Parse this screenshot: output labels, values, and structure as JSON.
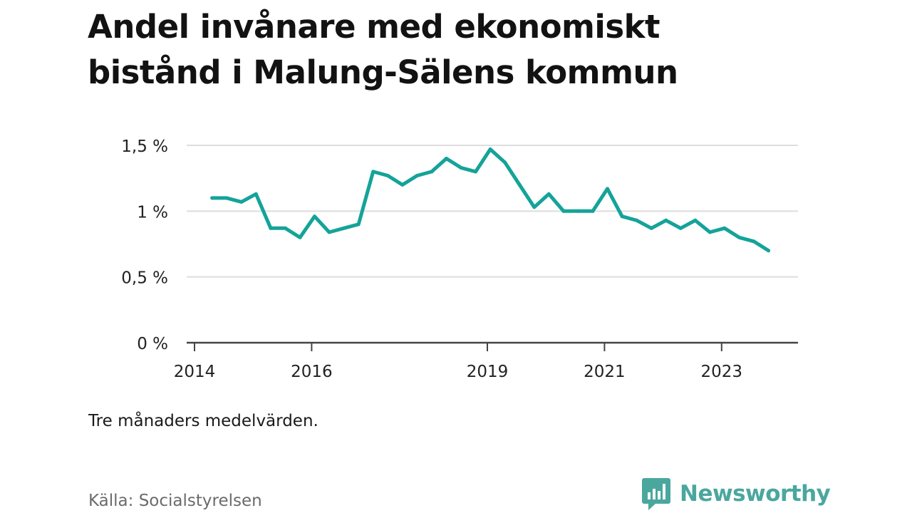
{
  "title_line1": "Andel invånare med ekonomiskt",
  "title_line2": "bistånd i Malung-Sälens kommun",
  "note": "Tre månaders medelvärden.",
  "source": "Källa: Socialstyrelsen",
  "brand": "Newsworthy",
  "colors": {
    "line": "#14a399",
    "grid": "#dddddd",
    "axis": "#444444",
    "brand": "#4aa79e"
  },
  "chart_data": {
    "type": "line",
    "y_ticks": [
      {
        "value": 0,
        "label": "0 %"
      },
      {
        "value": 0.5,
        "label": "0,5 %"
      },
      {
        "value": 1,
        "label": "1 %"
      },
      {
        "value": 1.5,
        "label": "1,5 %"
      }
    ],
    "x_ticks": [
      {
        "value": 2014,
        "label": "2014"
      },
      {
        "value": 2016,
        "label": "2016"
      },
      {
        "value": 2019,
        "label": "2019"
      },
      {
        "value": 2021,
        "label": "2021"
      },
      {
        "value": 2023,
        "label": "2023"
      }
    ],
    "xlim": [
      2014,
      2024.3
    ],
    "ylim": [
      0,
      1.5
    ],
    "grid": true,
    "series": [
      {
        "x": [
          2014.3,
          2014.55,
          2014.8,
          2015.05,
          2015.3,
          2015.55,
          2015.8,
          2016.05,
          2016.3,
          2016.55,
          2016.8,
          2017.05,
          2017.3,
          2017.55,
          2017.8,
          2018.05,
          2018.3,
          2018.55,
          2018.8,
          2019.05,
          2019.3,
          2019.55,
          2019.8,
          2020.05,
          2020.3,
          2020.55,
          2020.8,
          2021.05,
          2021.3,
          2021.55,
          2021.8,
          2022.05,
          2022.3,
          2022.55,
          2022.8,
          2023.05,
          2023.3,
          2023.55,
          2023.8
        ],
        "values": [
          1.1,
          1.1,
          1.07,
          1.13,
          0.87,
          0.87,
          0.8,
          0.96,
          0.84,
          0.87,
          0.9,
          1.3,
          1.27,
          1.2,
          1.27,
          1.3,
          1.4,
          1.33,
          1.3,
          1.47,
          1.37,
          1.2,
          1.03,
          1.13,
          1.0,
          1.0,
          1.0,
          1.17,
          0.96,
          0.93,
          0.87,
          0.93,
          0.87,
          0.93,
          0.84,
          0.87,
          0.8,
          0.77,
          0.7
        ]
      }
    ]
  }
}
